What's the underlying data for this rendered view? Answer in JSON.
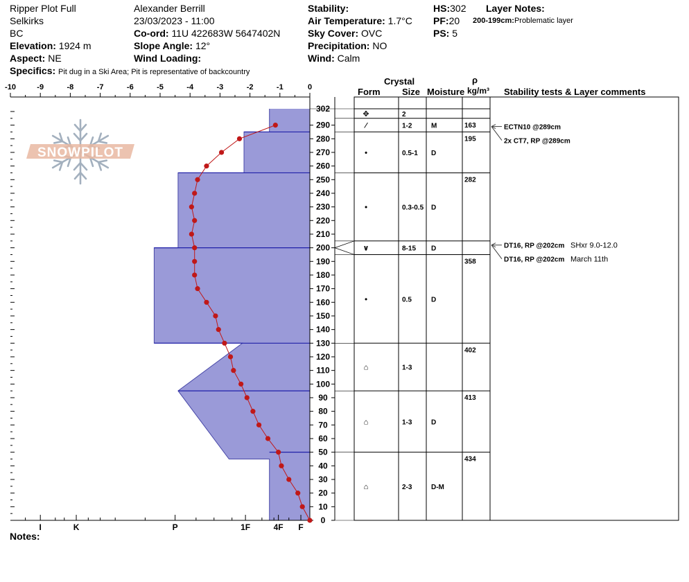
{
  "header": {
    "title": "Ripper Plot Full",
    "range": "Selkirks",
    "state": "BC",
    "elevation_label": "Elevation:",
    "elevation_value": "1924 m",
    "aspect_label": "Aspect:",
    "aspect_value": "NE",
    "observer": "Alexander Berrill",
    "datetime": "23/03/2023 - 11:00",
    "coord_label": "Co-ord:",
    "coord_value": "11U 422683W 5647402N",
    "slope_label": "Slope Angle:",
    "slope_value": "12°",
    "wind_loading_label": "Wind Loading:",
    "wind_loading_value": "",
    "stability_label": "Stability:",
    "stability_value": "",
    "air_temp_label": "Air Temperature:",
    "air_temp_value": "1.7°C",
    "sky_label": "Sky Cover:",
    "sky_value": "OVC",
    "precip_label": "Precipitation:",
    "precip_value": "NO",
    "wind_label": "Wind:",
    "wind_value": "Calm",
    "hs_label": "HS:",
    "hs_value": "302",
    "pf_label": "PF:",
    "pf_value": "20",
    "ps_label": "PS:",
    "ps_value": "5",
    "layer_notes_label": "Layer Notes:",
    "layer_notes_range": "200-199cm:",
    "layer_notes_text": "Problematic layer",
    "specifics_label": "Specifics:",
    "specifics_value": "Pit dug in a Ski Area; Pit is representative of backcountry",
    "notes_label": "Notes:",
    "logo_text": "SNOWPILOT"
  },
  "table_headers": {
    "crystal": "Crystal",
    "form": "Form",
    "size": "Size",
    "moisture": "Moisture",
    "rho": "ρ",
    "density_unit": "kg/m³",
    "comments": "Stability tests & Layer comments"
  },
  "colors": {
    "hardness_fill": "#9a9ad8",
    "hardness_edge": "#1f1fa8",
    "ram_line": "#c01818",
    "ram_point": "#c01818",
    "arrow": "#404040"
  },
  "chart_data": {
    "type": "snow_profile",
    "x_axis_ticks": [
      "-10",
      "-9",
      "-8",
      "-7",
      "-6",
      "-5",
      "-4",
      "-3",
      "-2",
      "-1",
      "0"
    ],
    "xlim": [
      -10,
      0
    ],
    "hardness_ticks": [
      {
        "label": "I",
        "x": -9.0
      },
      {
        "label": "K",
        "x": -7.8
      },
      {
        "label": "P",
        "x": -4.5
      },
      {
        "label": "1F",
        "x": -2.15
      },
      {
        "label": "4F",
        "x": -1.05
      },
      {
        "label": "F",
        "x": -0.3
      }
    ],
    "y_axis_ticks": [
      0,
      10,
      20,
      30,
      40,
      50,
      60,
      70,
      80,
      90,
      100,
      110,
      120,
      130,
      140,
      150,
      160,
      170,
      180,
      190,
      200,
      210,
      220,
      230,
      240,
      250,
      260,
      270,
      280,
      290
    ],
    "y_top_label": "302",
    "ylim": [
      0,
      302
    ],
    "hardness_profile": [
      {
        "h": 302,
        "x": -1.35
      },
      {
        "h": 285,
        "x": -1.35
      },
      {
        "h": 285,
        "x": -2.2
      },
      {
        "h": 255,
        "x": -2.2
      },
      {
        "h": 255,
        "x": -4.4
      },
      {
        "h": 200,
        "x": -4.4
      },
      {
        "h": 200,
        "x": -5.2
      },
      {
        "h": 130,
        "x": -5.2
      },
      {
        "h": 130,
        "x": -2.25
      },
      {
        "h": 95,
        "x": -4.4
      },
      {
        "h": 45,
        "x": -2.7
      },
      {
        "h": 45,
        "x": -1.35
      },
      {
        "h": 0,
        "x": -1.35
      }
    ],
    "layer_boundaries": [
      302,
      285,
      255,
      200,
      130,
      95,
      50,
      0
    ],
    "ram_profile": [
      {
        "h": 0,
        "x": 0
      },
      {
        "h": 10,
        "x": -0.25
      },
      {
        "h": 20,
        "x": -0.4
      },
      {
        "h": 30,
        "x": -0.7
      },
      {
        "h": 40,
        "x": -0.95
      },
      {
        "h": 50,
        "x": -1.05
      },
      {
        "h": 60,
        "x": -1.4
      },
      {
        "h": 70,
        "x": -1.7
      },
      {
        "h": 80,
        "x": -1.9
      },
      {
        "h": 90,
        "x": -2.1
      },
      {
        "h": 100,
        "x": -2.3
      },
      {
        "h": 110,
        "x": -2.55
      },
      {
        "h": 120,
        "x": -2.65
      },
      {
        "h": 130,
        "x": -2.85
      },
      {
        "h": 140,
        "x": -3.05
      },
      {
        "h": 150,
        "x": -3.15
      },
      {
        "h": 160,
        "x": -3.45
      },
      {
        "h": 170,
        "x": -3.75
      },
      {
        "h": 180,
        "x": -3.85
      },
      {
        "h": 190,
        "x": -3.85
      },
      {
        "h": 200,
        "x": -3.85
      },
      {
        "h": 210,
        "x": -3.95
      },
      {
        "h": 220,
        "x": -3.85
      },
      {
        "h": 230,
        "x": -3.95
      },
      {
        "h": 240,
        "x": -3.85
      },
      {
        "h": 250,
        "x": -3.75
      },
      {
        "h": 260,
        "x": -3.45
      },
      {
        "h": 270,
        "x": -2.95
      },
      {
        "h": 280,
        "x": -2.35
      },
      {
        "h": 290,
        "x": -1.15
      }
    ],
    "layers": [
      {
        "top": 302,
        "bottom": 295,
        "form": "✥",
        "size": "2",
        "moisture": "",
        "density": ""
      },
      {
        "top": 295,
        "bottom": 285,
        "form": "⁄",
        "size": "1-2",
        "moisture": "M",
        "density": "163"
      },
      {
        "top": 285,
        "bottom": 255,
        "form": "•",
        "size": "0.5-1",
        "moisture": "D",
        "density": "195"
      },
      {
        "top": 255,
        "bottom": 205,
        "form": "•",
        "size": "0.3-0.5",
        "moisture": "D",
        "density": "282"
      },
      {
        "top": 205,
        "bottom": 195,
        "form": "∨",
        "size": "8-15",
        "moisture": "D",
        "density": ""
      },
      {
        "top": 195,
        "bottom": 130,
        "form": "•",
        "size": "0.5",
        "moisture": "D",
        "density": "358"
      },
      {
        "top": 130,
        "bottom": 95,
        "form": "⌂",
        "size": "1-3",
        "moisture": "",
        "density": "402"
      },
      {
        "top": 95,
        "bottom": 50,
        "form": "⌂",
        "size": "1-3",
        "moisture": "D",
        "density": "413"
      },
      {
        "top": 50,
        "bottom": 0,
        "form": "⌂",
        "size": "2-3",
        "moisture": "D-M",
        "density": "434"
      }
    ],
    "stability_tests": [
      {
        "h": 289,
        "label": "ECTN10 @289cm",
        "comment": ""
      },
      {
        "h": 289,
        "label": "2x CT7, RP @289cm",
        "comment": ""
      },
      {
        "h": 202,
        "label": "DT16, RP @202cm",
        "comment": "SHxr 9.0-12.0"
      },
      {
        "h": 202,
        "label": "DT16, RP @202cm",
        "comment": "March 11th"
      }
    ]
  }
}
